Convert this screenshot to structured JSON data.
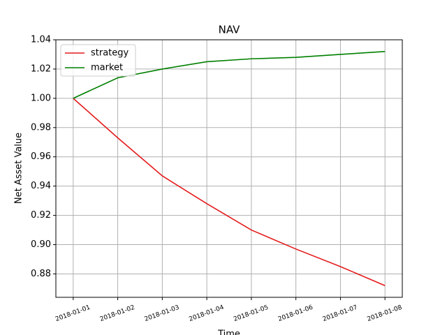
{
  "chart_data": {
    "type": "line",
    "title": "NAV",
    "x_label": "Time",
    "y_label": "Net Asset Value",
    "categories": [
      "2018-01-01",
      "2018-01-02",
      "2018-01-03",
      "2018-01-04",
      "2018-01-05",
      "2018-01-06",
      "2018-01-07",
      "2018-01-08"
    ],
    "series": [
      {
        "name": "strategy",
        "color": "#e41a1c",
        "values": [
          1.0,
          0.973,
          0.947,
          0.928,
          0.91,
          0.897,
          0.885,
          0.872
        ]
      },
      {
        "name": "market",
        "color": "#008000",
        "values": [
          1.0,
          1.014,
          1.02,
          1.025,
          1.027,
          1.028,
          1.03,
          1.032
        ]
      }
    ],
    "ylim": [
      0.864,
      1.04
    ],
    "yticks": [
      0.88,
      {
        "value": 0.9,
        "label": "0.90"
      },
      0.92,
      0.94,
      0.96,
      0.98,
      {
        "value": 1.0,
        "label": "1.00"
      },
      1.02,
      1.04
    ],
    "grid": true,
    "legend": "upper-left"
  }
}
